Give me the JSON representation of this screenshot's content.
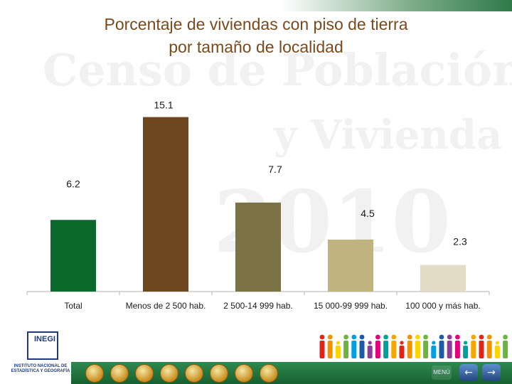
{
  "chart_data": {
    "type": "bar",
    "title_lines": [
      "Porcentaje de viviendas con piso de tierra",
      "por tamaño de localidad"
    ],
    "categories": [
      "Total",
      "Menos de 2 500 hab.",
      "2 500-14 999 hab.",
      "15 000-99 999 hab.",
      "100 000 y más hab."
    ],
    "values": [
      6.2,
      15.1,
      7.7,
      4.5,
      2.3
    ],
    "value_labels": [
      "6.2",
      "15.1",
      "7.7",
      "4.5",
      "2.3"
    ],
    "bar_colors": [
      "#0b6a2b",
      "#6e4620",
      "#7a7244",
      "#bfb380",
      "#e2dcc6"
    ],
    "xlabel": "",
    "ylabel": "",
    "ylim": [
      0,
      16
    ],
    "grid": false
  },
  "watermark": {
    "line1": "Censo de Población",
    "line2": "y Vivienda",
    "line3": "2010"
  },
  "logo": {
    "mark": "INEGI",
    "caption": "INSTITUTO NACIONAL DE ESTADÍSTICA Y GEOGRAFÍA"
  },
  "footer": {
    "menu_label": "MENÚ",
    "prev_icon": "left-arrow-icon",
    "next_icon": "right-arrow-icon",
    "prev_glyph": "←",
    "next_glyph": "→",
    "strip_color": "#1f7a3f"
  }
}
